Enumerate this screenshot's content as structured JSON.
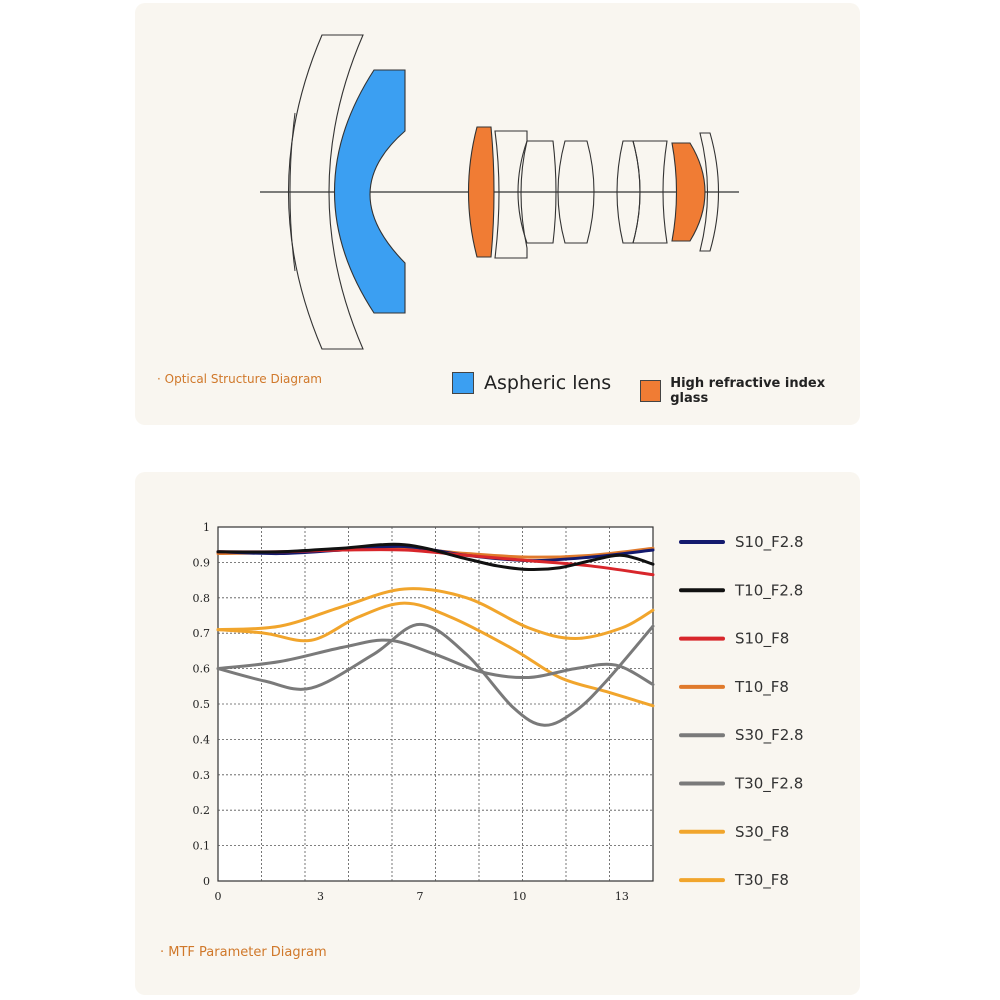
{
  "optical": {
    "caption": "· Optical Structure Diagram",
    "legend": [
      {
        "label": "Aspheric lens",
        "color": "#3b9ff2"
      },
      {
        "label": "High refractive index glass",
        "color": "#f07c34"
      }
    ]
  },
  "mtf": {
    "caption": "· MTF Parameter Diagram"
  },
  "chart_data": {
    "type": "line",
    "title": "",
    "xlabel": "",
    "ylabel": "",
    "xlim": [
      0,
      14
    ],
    "ylim": [
      0,
      1
    ],
    "grid": true,
    "legend_placement": "right",
    "x_ticks": [
      "0",
      "3",
      "7",
      "10",
      "13"
    ],
    "x_tick_values": [
      0,
      3.3,
      6.5,
      9.7,
      13
    ],
    "y_ticks": [
      "0",
      "0.1",
      "0.2",
      "0.3",
      "0.4",
      "0.5",
      "0.6",
      "0.7",
      "0.8",
      "0.9",
      "1"
    ],
    "series": [
      {
        "name": "S10_F2.8",
        "color": "#141a6e",
        "x": [
          0,
          2,
          4,
          6,
          8,
          10,
          12,
          14
        ],
        "y": [
          0.93,
          0.925,
          0.935,
          0.945,
          0.92,
          0.905,
          0.915,
          0.935
        ]
      },
      {
        "name": "T10_F2.8",
        "color": "#111111",
        "x": [
          0,
          2,
          4,
          6,
          8,
          9,
          10,
          11,
          12,
          13,
          14
        ],
        "y": [
          0.93,
          0.93,
          0.94,
          0.95,
          0.91,
          0.89,
          0.88,
          0.885,
          0.905,
          0.92,
          0.895
        ]
      },
      {
        "name": "S10_F8",
        "color": "#d8262b",
        "x": [
          0,
          2,
          4,
          6,
          8,
          10,
          12,
          14
        ],
        "y": [
          0.93,
          0.93,
          0.935,
          0.935,
          0.92,
          0.905,
          0.89,
          0.865
        ]
      },
      {
        "name": "T10_F8",
        "color": "#e07a2c",
        "x": [
          0,
          2,
          4,
          6,
          8,
          10,
          12,
          14
        ],
        "y": [
          0.925,
          0.928,
          0.935,
          0.94,
          0.925,
          0.915,
          0.92,
          0.94
        ]
      },
      {
        "name": "S30_F2.8",
        "color": "#7a7a7a",
        "x": [
          0,
          1.5,
          3,
          5,
          6.5,
          8,
          9.5,
          10.5,
          11.5,
          12.5,
          14
        ],
        "y": [
          0.6,
          0.565,
          0.545,
          0.64,
          0.725,
          0.64,
          0.49,
          0.44,
          0.48,
          0.565,
          0.72
        ]
      },
      {
        "name": "T30_F2.8",
        "color": "#7a7a7a",
        "x": [
          0,
          2,
          4,
          5.5,
          7,
          8.5,
          10,
          11.5,
          12.8,
          14
        ],
        "y": [
          0.6,
          0.62,
          0.66,
          0.68,
          0.64,
          0.59,
          0.575,
          0.6,
          0.61,
          0.555
        ]
      },
      {
        "name": "S30_F8",
        "color": "#f1a52c",
        "x": [
          0,
          2,
          4,
          6,
          8,
          10,
          11.5,
          13,
          14
        ],
        "y": [
          0.71,
          0.72,
          0.775,
          0.825,
          0.8,
          0.715,
          0.685,
          0.715,
          0.765
        ]
      },
      {
        "name": "T30_F8",
        "color": "#f1a52c",
        "x": [
          0,
          1.5,
          3,
          4.5,
          6,
          7.5,
          9.5,
          11,
          12.5,
          14
        ],
        "y": [
          0.71,
          0.7,
          0.68,
          0.745,
          0.785,
          0.745,
          0.655,
          0.575,
          0.535,
          0.495
        ]
      }
    ]
  }
}
